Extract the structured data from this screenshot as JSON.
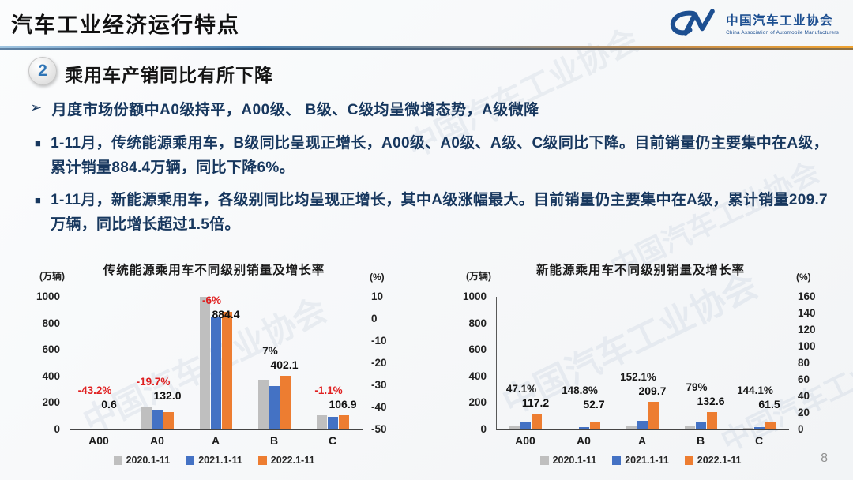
{
  "header": {
    "title": "汽车工业经济运行特点",
    "logo": {
      "name_cn": "中国汽车工业协会",
      "name_en": "China Association of Automobile Manufacturers"
    }
  },
  "section": {
    "number": "2",
    "title": "乘用车产销同比有所下降"
  },
  "bullets": {
    "headline": "月度市场份额中A0级持平，A00级、 B级、C级均呈微增态势，A级微降",
    "items": [
      "1-11月，传统能源乘用车，B级同比呈现正增长，A00级、A0级、A级、C级同比下降。目前销量仍主要集中在A级，累计销量884.4万辆，同比下降6%。",
      "1-11月，新能源乘用车，各级别同比均呈现正增长，其中A级涨幅最大。目前销量仍主要集中在A级，累计销量209.7万辆，同比增长超过1.5倍。"
    ]
  },
  "watermark": "中国汽车工业协会",
  "page_number": "8",
  "colors": {
    "bar_gray": "#bfbfbf",
    "bar_blue": "#4472c4",
    "bar_orange": "#ed7d31",
    "text_navy": "#17375e",
    "negative_red": "#e02020",
    "brand_blue": "#1d4f91"
  },
  "chart_data": [
    {
      "type": "bar",
      "title": "传统能源乘用车不同级别销量及增长率",
      "left_axis_label": "(万辆)",
      "right_axis_label": "(%)",
      "categories": [
        "A00",
        "A0",
        "A",
        "B",
        "C"
      ],
      "series": [
        {
          "name": "2020.1-11",
          "color": "#bfbfbf",
          "values": [
            2,
            175,
            1000,
            378,
            110
          ]
        },
        {
          "name": "2021.1-11",
          "color": "#4472c4",
          "values": [
            1.1,
            148,
            845,
            330,
            95
          ]
        },
        {
          "name": "2022.1-11",
          "color": "#ed7d31",
          "values": [
            0.6,
            132.0,
            884.4,
            402.1,
            106.9
          ]
        }
      ],
      "labels": [
        {
          "growth": "-43.2%",
          "value": "0.6"
        },
        {
          "growth": "-19.7%",
          "value": "132.0"
        },
        {
          "growth": "-6%",
          "value": "884.4"
        },
        {
          "growth": "7%",
          "value": "402.1"
        },
        {
          "growth": "-1.1%",
          "value": "106.9"
        }
      ],
      "left_ticks": [
        1000,
        800,
        600,
        400,
        200,
        0
      ],
      "right_ticks": [
        10,
        0,
        -10,
        -20,
        -30,
        -40,
        -50
      ],
      "left_max": 1000,
      "legend_position": "bottom",
      "grid": false
    },
    {
      "type": "bar",
      "title": "新能源乘用车不同级别销量及增长率",
      "left_axis_label": "(万辆)",
      "right_axis_label": "(%)",
      "categories": [
        "A00",
        "A0",
        "A",
        "B",
        "C"
      ],
      "series": [
        {
          "name": "2020.1-11",
          "color": "#bfbfbf",
          "values": [
            25,
            4,
            30,
            26,
            12
          ]
        },
        {
          "name": "2021.1-11",
          "color": "#4472c4",
          "values": [
            57,
            17,
            66,
            60,
            20
          ]
        },
        {
          "name": "2022.1-11",
          "color": "#ed7d31",
          "values": [
            117.2,
            52.7,
            209.7,
            132.6,
            61.5
          ]
        }
      ],
      "labels": [
        {
          "growth": "47.1%",
          "value": "117.2"
        },
        {
          "growth": "148.8%",
          "value": "52.7"
        },
        {
          "growth": "152.1%",
          "value": "209.7"
        },
        {
          "growth": "79%",
          "value": "132.6"
        },
        {
          "growth": "144.1%",
          "value": "61.5"
        }
      ],
      "left_ticks": [
        1000,
        800,
        600,
        400,
        200,
        0
      ],
      "right_ticks": [
        160,
        140,
        120,
        100,
        80,
        60,
        40,
        20,
        0
      ],
      "left_max": 1000,
      "legend_position": "bottom",
      "grid": false
    }
  ]
}
